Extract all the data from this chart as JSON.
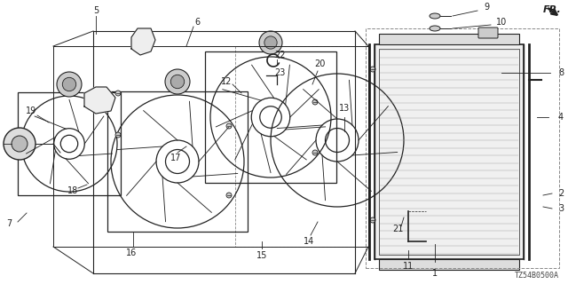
{
  "title": "",
  "background_color": "#ffffff",
  "diagram_code": "TZ54B0500A",
  "fr_label": "FR.",
  "line_color": "#222222",
  "dashed_box_color": "#888888",
  "label_fontsize": 7,
  "code_fontsize": 6
}
